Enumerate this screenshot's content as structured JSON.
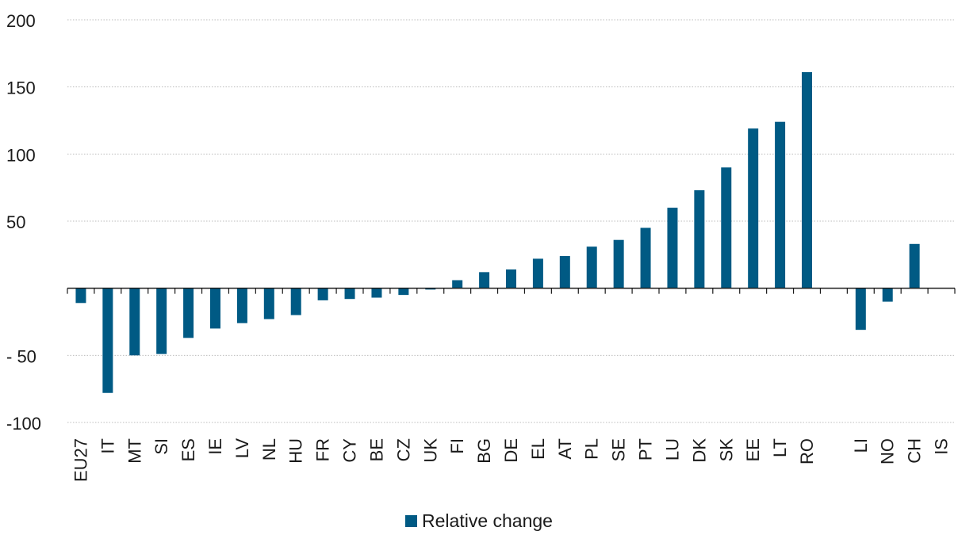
{
  "chart_data": {
    "type": "bar",
    "title": "",
    "xlabel": "",
    "ylabel": "",
    "ylim": [
      -100,
      200
    ],
    "yticks": [
      200,
      150,
      100,
      50,
      -50,
      -100
    ],
    "ytick_labels": [
      "200",
      "150",
      "100",
      "50",
      "- 50",
      "-100"
    ],
    "grid": true,
    "legend_position": "bottom-center",
    "categories": [
      "EU27",
      "IT",
      "MT",
      "SI",
      "ES",
      "IE",
      "LV",
      "NL",
      "HU",
      "FR",
      "CY",
      "BE",
      "CZ",
      "UK",
      "FI",
      "BG",
      "DE",
      "EL",
      "AT",
      "PL",
      "SE",
      "PT",
      "LU",
      "DK",
      "SK",
      "EE",
      "LT",
      "RO",
      "",
      "LI",
      "NO",
      "CH",
      "IS"
    ],
    "series": [
      {
        "name": "Relative change",
        "color": "#005a84",
        "values": [
          -11,
          -78,
          -50,
          -49,
          -37,
          -30,
          -26,
          -23,
          -20,
          -9,
          -8,
          -7,
          -5,
          -1,
          6,
          12,
          14,
          22,
          24,
          31,
          36,
          45,
          60,
          73,
          90,
          119,
          124,
          161,
          null,
          -31,
          -10,
          33,
          0
        ]
      }
    ]
  }
}
